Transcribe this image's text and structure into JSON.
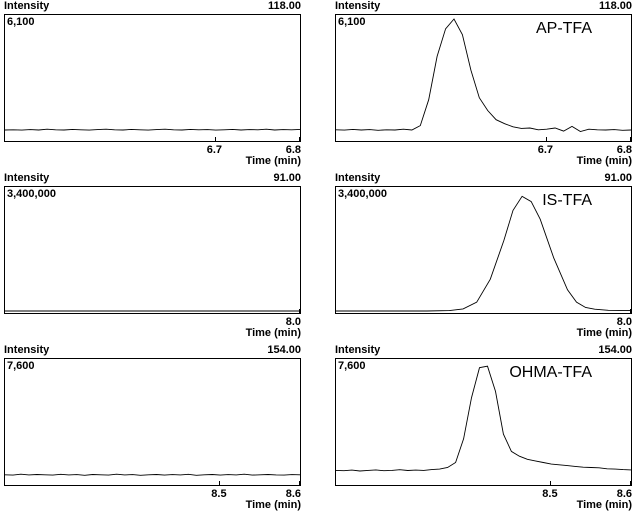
{
  "chart_data": [
    {
      "type": "line",
      "ylabel": "Intensity",
      "mass": "118.00",
      "ymax_label": "6,100",
      "xlabel": "Time (min)",
      "x_ticks": [
        "6.7",
        "6.8"
      ],
      "xlim": [
        6.45,
        6.8
      ],
      "ylim": [
        0,
        6100
      ],
      "series": [
        {
          "x": [
            6.45,
            6.46,
            6.47,
            6.48,
            6.49,
            6.5,
            6.51,
            6.52,
            6.53,
            6.54,
            6.55,
            6.56,
            6.57,
            6.58,
            6.59,
            6.6,
            6.61,
            6.62,
            6.63,
            6.64,
            6.65,
            6.66,
            6.67,
            6.68,
            6.69,
            6.7,
            6.71,
            6.72,
            6.73,
            6.74,
            6.75,
            6.76,
            6.77,
            6.78,
            6.79,
            6.8
          ],
          "y": [
            460,
            470,
            450,
            480,
            460,
            500,
            470,
            460,
            490,
            470,
            450,
            480,
            500,
            470,
            460,
            490,
            470,
            450,
            480,
            500,
            470,
            460,
            490,
            470,
            480,
            450,
            470,
            490,
            460,
            480,
            470,
            500,
            460,
            480,
            470,
            490
          ]
        }
      ]
    },
    {
      "type": "line",
      "ylabel": "Intensity",
      "mass": "118.00",
      "ymax_label": "6,100",
      "xlabel": "Time (min)",
      "x_ticks": [
        "6.7",
        "6.8"
      ],
      "xlim": [
        6.45,
        6.8
      ],
      "ylim": [
        0,
        6100
      ],
      "annotation": "AP-TFA",
      "series": [
        {
          "x": [
            6.45,
            6.46,
            6.47,
            6.48,
            6.49,
            6.5,
            6.51,
            6.52,
            6.53,
            6.54,
            6.55,
            6.56,
            6.57,
            6.58,
            6.59,
            6.6,
            6.61,
            6.62,
            6.63,
            6.64,
            6.65,
            6.66,
            6.67,
            6.68,
            6.69,
            6.7,
            6.71,
            6.72,
            6.73,
            6.74,
            6.75,
            6.76,
            6.77,
            6.78,
            6.79,
            6.8
          ],
          "y": [
            470,
            450,
            490,
            460,
            480,
            440,
            470,
            460,
            500,
            460,
            680,
            2000,
            4200,
            5600,
            6100,
            5300,
            3500,
            2100,
            1450,
            980,
            780,
            620,
            540,
            560,
            470,
            500,
            560,
            400,
            640,
            380,
            500,
            470,
            460,
            480,
            440,
            460
          ]
        }
      ]
    },
    {
      "type": "line",
      "ylabel": "Intensity",
      "mass": "91.00",
      "ymax_label": "3,400,000",
      "xlabel": "Time (min)",
      "x_ticks": [
        "8.0"
      ],
      "xlim": [
        7.35,
        8.0
      ],
      "ylim": [
        0,
        3400000
      ],
      "series": [
        {
          "x": [
            7.35,
            8.0
          ],
          "y": [
            0,
            0
          ]
        }
      ]
    },
    {
      "type": "line",
      "ylabel": "Intensity",
      "mass": "91.00",
      "ymax_label": "3,400,000",
      "xlabel": "Time (min)",
      "x_ticks": [
        "8.0"
      ],
      "xlim": [
        7.35,
        8.0
      ],
      "ylim": [
        0,
        3400000
      ],
      "annotation": "IS-TFA",
      "series": [
        {
          "x": [
            7.35,
            7.45,
            7.55,
            7.6,
            7.63,
            7.66,
            7.69,
            7.72,
            7.74,
            7.76,
            7.78,
            7.8,
            7.83,
            7.86,
            7.88,
            7.9,
            7.92,
            7.95,
            8.0
          ],
          "y": [
            0,
            0,
            0,
            10000,
            60000,
            250000,
            900000,
            2000000,
            2850000,
            3250000,
            3100000,
            2600000,
            1500000,
            600000,
            250000,
            100000,
            50000,
            20000,
            10000
          ]
        }
      ]
    },
    {
      "type": "line",
      "ylabel": "Intensity",
      "mass": "154.00",
      "ymax_label": "7,600",
      "xlabel": "Time (min)",
      "x_ticks": [
        "8.5",
        "8.6"
      ],
      "xlim": [
        8.23,
        8.6
      ],
      "ylim": [
        0,
        7600
      ],
      "series": [
        {
          "x": [
            8.23,
            8.24,
            8.25,
            8.26,
            8.27,
            8.28,
            8.29,
            8.3,
            8.31,
            8.32,
            8.33,
            8.34,
            8.35,
            8.36,
            8.37,
            8.38,
            8.39,
            8.4,
            8.41,
            8.42,
            8.43,
            8.44,
            8.45,
            8.46,
            8.47,
            8.48,
            8.49,
            8.5,
            8.51,
            8.52,
            8.53,
            8.54,
            8.55,
            8.56,
            8.57,
            8.58,
            8.59,
            8.6
          ],
          "y": [
            520,
            500,
            560,
            510,
            540,
            520,
            500,
            550,
            510,
            530,
            490,
            540,
            520,
            500,
            560,
            510,
            530,
            490,
            520,
            540,
            500,
            530,
            510,
            550,
            490,
            520,
            540,
            500,
            530,
            510,
            560,
            500,
            520,
            540,
            510,
            500,
            530,
            520
          ]
        }
      ]
    },
    {
      "type": "line",
      "ylabel": "Intensity",
      "mass": "154.00",
      "ymax_label": "7,600",
      "xlabel": "Time (min)",
      "x_ticks": [
        "8.5",
        "8.6"
      ],
      "xlim": [
        8.23,
        8.6
      ],
      "ylim": [
        0,
        7600
      ],
      "annotation": "OHMA-TFA",
      "series": [
        {
          "x": [
            8.23,
            8.24,
            8.25,
            8.26,
            8.27,
            8.28,
            8.29,
            8.3,
            8.31,
            8.32,
            8.33,
            8.34,
            8.35,
            8.36,
            8.37,
            8.38,
            8.39,
            8.4,
            8.41,
            8.42,
            8.43,
            8.44,
            8.45,
            8.46,
            8.47,
            8.48,
            8.49,
            8.5,
            8.51,
            8.52,
            8.53,
            8.54,
            8.55,
            8.56,
            8.57,
            8.58,
            8.59,
            8.6
          ],
          "y": [
            800,
            780,
            820,
            760,
            800,
            830,
            780,
            800,
            840,
            790,
            820,
            800,
            850,
            880,
            980,
            1300,
            2800,
            5400,
            7300,
            7400,
            5800,
            3100,
            2000,
            1700,
            1500,
            1400,
            1300,
            1200,
            1150,
            1100,
            1050,
            1000,
            980,
            960,
            900,
            880,
            850,
            830
          ]
        }
      ]
    }
  ]
}
